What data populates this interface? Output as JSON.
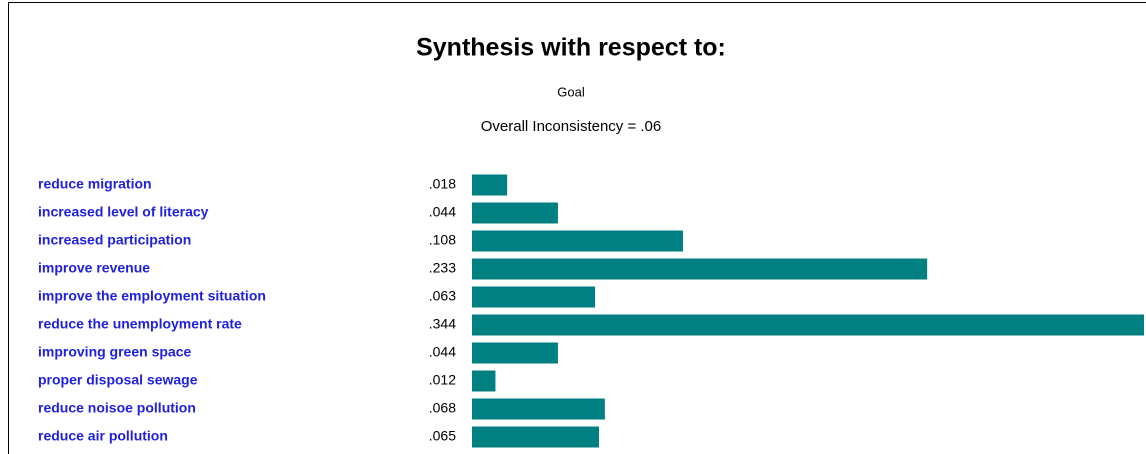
{
  "chart_data": {
    "type": "hbar",
    "title": "Synthesis with respect to:",
    "subtitle": "Goal",
    "annotation": "Overall Inconsistency = .06",
    "categories": [
      "reduce migration",
      "increased level of literacy",
      "increased participation",
      "improve revenue",
      "improve the employment situation",
      "reduce the unemployment rate",
      "improving green space",
      "proper disposal sewage",
      "reduce noisoe pollution",
      "reduce air pollution"
    ],
    "values": [
      0.018,
      0.044,
      0.108,
      0.233,
      0.063,
      0.344,
      0.044,
      0.012,
      0.068,
      0.065
    ],
    "value_labels": [
      ".018",
      ".044",
      ".108",
      ".233",
      ".063",
      ".344",
      ".044",
      ".012",
      ".068",
      ".065"
    ],
    "color": "#008080"
  }
}
